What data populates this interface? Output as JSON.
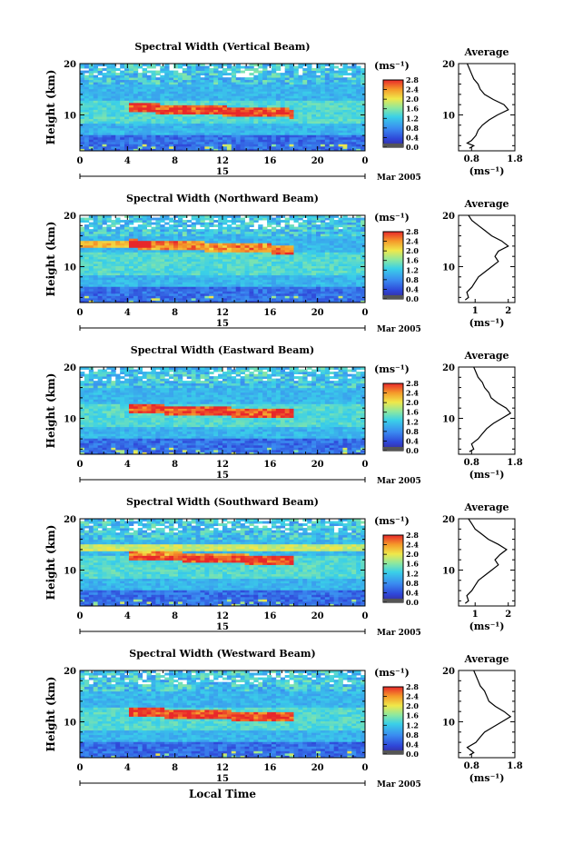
{
  "figure": {
    "xlabel": "Local Time",
    "date_label": "Mar 2005",
    "date_day": "15"
  },
  "chart_data": [
    {
      "type": "heatmap",
      "title": "Spectral Width (Vertical Beam)",
      "ylabel": "Height (km)",
      "x_ticks": [
        "0",
        "4",
        "8",
        "12",
        "16",
        "20",
        "0"
      ],
      "y_ticks": [
        "20",
        "10"
      ],
      "xlim": [
        0,
        24
      ],
      "ylim": [
        3,
        20
      ],
      "colorbar": {
        "unit": "(ms⁻¹)",
        "ticks": [
          "2.8",
          "2.4",
          "2.0",
          "1.6",
          "1.2",
          "0.8",
          "0.4",
          "0.0"
        ],
        "range": [
          0,
          2.8
        ]
      },
      "average": {
        "title": "Average",
        "xlabel": "(ms⁻¹)",
        "x_ticks": [
          "0.8",
          "1.8"
        ],
        "xlim": [
          0.5,
          1.8
        ],
        "y_ticks": [
          "20",
          "10"
        ],
        "profile": [
          [
            0.75,
            3.5
          ],
          [
            0.85,
            4
          ],
          [
            0.7,
            4.5
          ],
          [
            0.8,
            5
          ],
          [
            0.9,
            6
          ],
          [
            0.95,
            7
          ],
          [
            1.05,
            8
          ],
          [
            1.2,
            9
          ],
          [
            1.4,
            10
          ],
          [
            1.65,
            11
          ],
          [
            1.55,
            12
          ],
          [
            1.3,
            13
          ],
          [
            1.1,
            14
          ],
          [
            1.0,
            15
          ],
          [
            0.95,
            16
          ],
          [
            0.85,
            17
          ],
          [
            0.8,
            18
          ],
          [
            0.75,
            19
          ],
          [
            0.7,
            20
          ]
        ]
      }
    },
    {
      "type": "heatmap",
      "title": "Spectral Width (Northward Beam)",
      "ylabel": "Height (km)",
      "x_ticks": [
        "0",
        "4",
        "8",
        "12",
        "16",
        "20",
        "0"
      ],
      "y_ticks": [
        "20",
        "10"
      ],
      "xlim": [
        0,
        24
      ],
      "ylim": [
        3,
        20
      ],
      "colorbar": {
        "unit": "(ms⁻¹)",
        "ticks": [
          "2.8",
          "2.4",
          "2.0",
          "1.6",
          "1.2",
          "0.8",
          "0.4",
          "0.0"
        ],
        "range": [
          0,
          2.8
        ]
      },
      "average": {
        "title": "Average",
        "xlabel": "(ms⁻¹)",
        "x_ticks": [
          "1",
          "2"
        ],
        "xlim": [
          0.5,
          2.2
        ],
        "y_ticks": [
          "20",
          "10"
        ],
        "profile": [
          [
            0.7,
            3.5
          ],
          [
            0.8,
            4
          ],
          [
            0.75,
            5
          ],
          [
            0.9,
            6
          ],
          [
            1.0,
            7
          ],
          [
            1.1,
            8
          ],
          [
            1.3,
            9
          ],
          [
            1.5,
            10
          ],
          [
            1.7,
            11
          ],
          [
            1.6,
            12
          ],
          [
            1.7,
            13
          ],
          [
            2.0,
            14
          ],
          [
            1.8,
            15
          ],
          [
            1.5,
            16
          ],
          [
            1.3,
            17
          ],
          [
            1.1,
            18
          ],
          [
            0.9,
            19
          ],
          [
            0.8,
            20
          ]
        ]
      }
    },
    {
      "type": "heatmap",
      "title": "Spectral Width (Eastward Beam)",
      "ylabel": "Height (km)",
      "x_ticks": [
        "0",
        "4",
        "8",
        "12",
        "16",
        "20",
        "0"
      ],
      "y_ticks": [
        "20",
        "10"
      ],
      "xlim": [
        0,
        24
      ],
      "ylim": [
        3,
        20
      ],
      "colorbar": {
        "unit": "(ms⁻¹)",
        "ticks": [
          "2.8",
          "2.4",
          "2.0",
          "1.6",
          "1.2",
          "0.8",
          "0.4",
          "0.0"
        ],
        "range": [
          0,
          2.8
        ]
      },
      "average": {
        "title": "Average",
        "xlabel": "(ms⁻¹)",
        "x_ticks": [
          "0.8",
          "1.8"
        ],
        "xlim": [
          0.5,
          1.8
        ],
        "y_ticks": [
          "20",
          "10"
        ],
        "profile": [
          [
            0.75,
            3.5
          ],
          [
            0.85,
            4
          ],
          [
            0.8,
            5
          ],
          [
            0.95,
            6
          ],
          [
            1.05,
            7
          ],
          [
            1.15,
            8
          ],
          [
            1.3,
            9
          ],
          [
            1.5,
            10
          ],
          [
            1.7,
            11
          ],
          [
            1.6,
            12
          ],
          [
            1.4,
            13
          ],
          [
            1.25,
            14
          ],
          [
            1.2,
            15
          ],
          [
            1.1,
            16
          ],
          [
            1.05,
            17
          ],
          [
            0.95,
            18
          ],
          [
            0.9,
            19
          ],
          [
            0.85,
            20
          ]
        ]
      }
    },
    {
      "type": "heatmap",
      "title": "Spectral Width (Southward Beam)",
      "ylabel": "Height (km)",
      "x_ticks": [
        "0",
        "4",
        "8",
        "12",
        "16",
        "20",
        "0"
      ],
      "y_ticks": [
        "20",
        "10"
      ],
      "xlim": [
        0,
        24
      ],
      "ylim": [
        3,
        20
      ],
      "colorbar": {
        "unit": "(ms⁻¹)",
        "ticks": [
          "2.8",
          "2.4",
          "2.0",
          "1.6",
          "1.2",
          "0.8",
          "0.4",
          "0.0"
        ],
        "range": [
          0,
          2.8
        ]
      },
      "average": {
        "title": "Average",
        "xlabel": "(ms⁻¹)",
        "x_ticks": [
          "1",
          "2"
        ],
        "xlim": [
          0.5,
          2.2
        ],
        "y_ticks": [
          "20",
          "10"
        ],
        "profile": [
          [
            0.7,
            3.5
          ],
          [
            0.8,
            4
          ],
          [
            0.75,
            5
          ],
          [
            0.9,
            6
          ],
          [
            1.0,
            7
          ],
          [
            1.1,
            8
          ],
          [
            1.3,
            9
          ],
          [
            1.5,
            10
          ],
          [
            1.7,
            11
          ],
          [
            1.6,
            12
          ],
          [
            1.75,
            13
          ],
          [
            1.95,
            14
          ],
          [
            1.7,
            15
          ],
          [
            1.4,
            16
          ],
          [
            1.2,
            17
          ],
          [
            1.0,
            18
          ],
          [
            0.9,
            19
          ],
          [
            0.8,
            20
          ]
        ]
      }
    },
    {
      "type": "heatmap",
      "title": "Spectral Width (Westward Beam)",
      "ylabel": "Height (km)",
      "x_ticks": [
        "0",
        "4",
        "8",
        "12",
        "16",
        "20",
        "0"
      ],
      "y_ticks": [
        "20",
        "10"
      ],
      "xlim": [
        0,
        24
      ],
      "ylim": [
        3,
        20
      ],
      "colorbar": {
        "unit": "(ms⁻¹)",
        "ticks": [
          "2.8",
          "2.4",
          "2.0",
          "1.6",
          "1.2",
          "0.8",
          "0.4",
          "0.0"
        ],
        "range": [
          0,
          2.8
        ]
      },
      "average": {
        "title": "Average",
        "xlabel": "(ms⁻¹)",
        "x_ticks": [
          "0.8",
          "1.8"
        ],
        "xlim": [
          0.5,
          1.8
        ],
        "y_ticks": [
          "20",
          "10"
        ],
        "profile": [
          [
            0.75,
            3.5
          ],
          [
            0.85,
            4
          ],
          [
            0.7,
            5
          ],
          [
            0.9,
            6
          ],
          [
            1.0,
            7
          ],
          [
            1.1,
            8
          ],
          [
            1.3,
            9
          ],
          [
            1.5,
            10
          ],
          [
            1.7,
            11
          ],
          [
            1.55,
            12
          ],
          [
            1.35,
            13
          ],
          [
            1.2,
            14
          ],
          [
            1.15,
            15
          ],
          [
            1.1,
            16
          ],
          [
            1.0,
            17
          ],
          [
            0.95,
            18
          ],
          [
            0.9,
            19
          ],
          [
            0.85,
            20
          ]
        ]
      }
    }
  ]
}
